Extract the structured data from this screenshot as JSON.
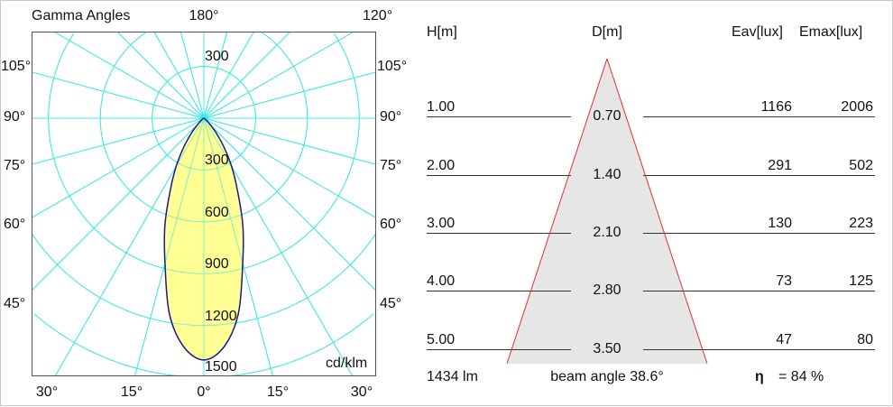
{
  "polar": {
    "title": "Gamma Angles",
    "top_labels": [
      "180°",
      "120°"
    ],
    "left_angle_labels": [
      "105°",
      "90°",
      "75°",
      "60°",
      "45°"
    ],
    "right_angle_labels": [
      "105°",
      "90°",
      "75°",
      "60°",
      "45°"
    ],
    "bottom_angle_labels": [
      "30°",
      "15°",
      "0°",
      "15°",
      "30°"
    ],
    "upper_ring_label": "300",
    "ring_labels": [
      "300",
      "600",
      "900",
      "1200",
      "1500"
    ],
    "unit": "cd/klm",
    "colors": {
      "grid": "#40e8e8",
      "curve": "#1a1a8c",
      "fill": "#ffff80"
    }
  },
  "chart_data": {
    "type": "polar",
    "unit": "cd/klm",
    "rings": [
      300,
      600,
      900,
      1200,
      1500
    ],
    "angle_step_deg": 15,
    "intensity": {
      "gamma_deg": [
        0,
        5,
        10,
        15,
        20,
        25,
        30,
        35,
        40,
        45,
        50,
        60,
        90
      ],
      "values": [
        1400,
        1330,
        1150,
        870,
        660,
        460,
        320,
        200,
        110,
        50,
        20,
        5,
        0
      ]
    }
  },
  "cone": {
    "headers": {
      "h": "H[m]",
      "d": "D[m]",
      "eav": "Eav[lux]",
      "emax": "Emax[lux]"
    },
    "rows": [
      {
        "h": "1.00",
        "d": "0.70",
        "eav": "1166",
        "emax": "2006"
      },
      {
        "h": "2.00",
        "d": "1.40",
        "eav": "291",
        "emax": "502"
      },
      {
        "h": "3.00",
        "d": "2.10",
        "eav": "130",
        "emax": "223"
      },
      {
        "h": "4.00",
        "d": "2.80",
        "eav": "73",
        "emax": "125"
      },
      {
        "h": "5.00",
        "d": "3.50",
        "eav": "47",
        "emax": "80"
      }
    ],
    "flux": "1434 lm",
    "beam_angle": "beam angle 38.6°",
    "eta_symbol": "η",
    "efficiency": "= 84 %",
    "colors": {
      "cone_fill": "#e6e6e6",
      "cone_edge": "#e03030"
    }
  }
}
